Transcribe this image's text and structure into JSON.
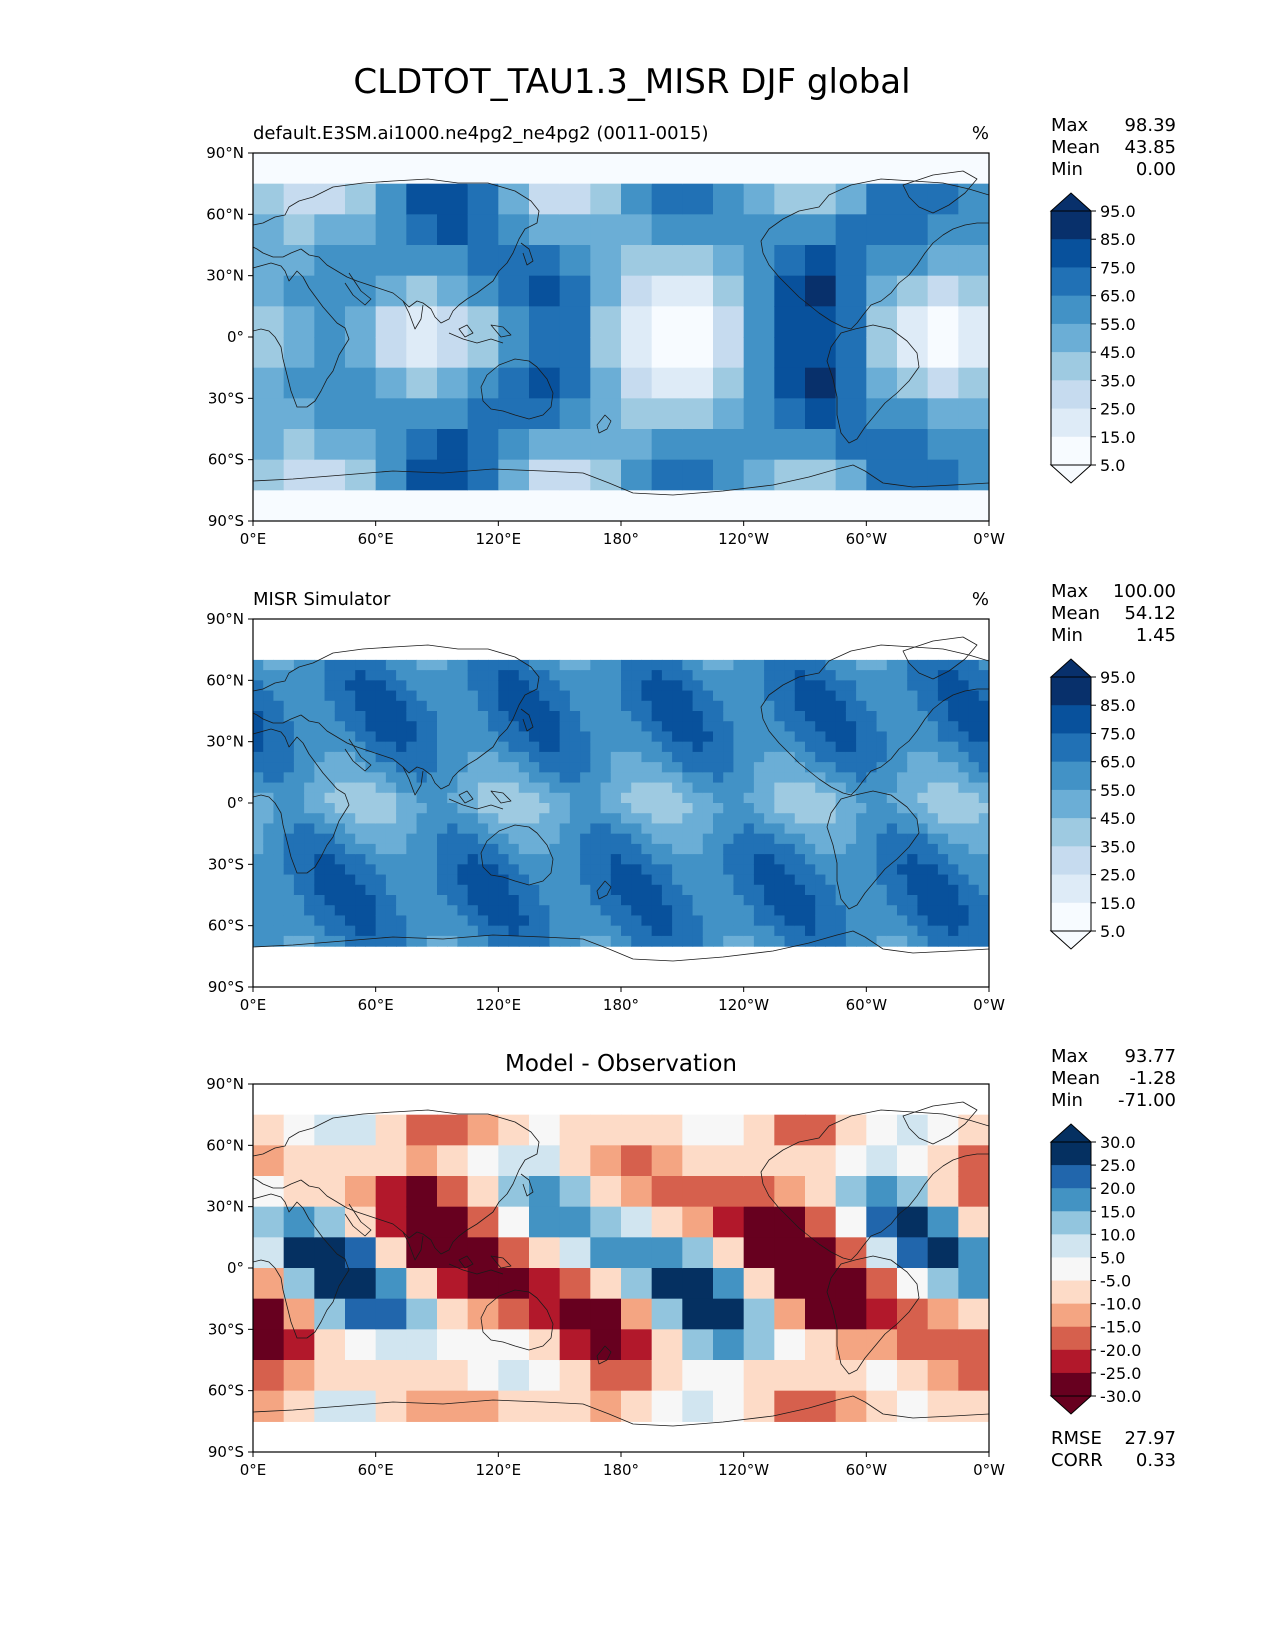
{
  "figure": {
    "title": "CLDTOT_TAU1.3_MISR DJF global"
  },
  "axes": {
    "lat_ticks": [
      "90°N",
      "60°N",
      "30°N",
      "0°",
      "30°S",
      "60°S",
      "90°S"
    ],
    "lon_ticks": [
      "0°E",
      "60°E",
      "120°E",
      "180°",
      "120°W",
      "60°W",
      "0°W"
    ]
  },
  "panels": [
    {
      "id": "model",
      "left_title": "default.E3SM.ai1000.ne4pg2_ne4pg2 (0011-0015)",
      "center_title": "",
      "units": "%",
      "stats": [
        {
          "label": "Max",
          "value": "98.39"
        },
        {
          "label": "Mean",
          "value": "43.85"
        },
        {
          "label": "Min",
          "value": "0.00"
        }
      ],
      "colorbar_labels": [
        "95.0",
        "85.0",
        "75.0",
        "65.0",
        "55.0",
        "45.0",
        "35.0",
        "25.0",
        "15.0",
        "5.0"
      ],
      "colorbar_colors": [
        "#08306b",
        "#08519c",
        "#2171b5",
        "#4292c6",
        "#6baed6",
        "#9ecae1",
        "#c6dbef",
        "#deebf7",
        "#f7fbff"
      ],
      "extra_stats": []
    },
    {
      "id": "obs",
      "left_title": "MISR Simulator",
      "center_title": "",
      "units": "%",
      "stats": [
        {
          "label": "Max",
          "value": "100.00"
        },
        {
          "label": "Mean",
          "value": "54.12"
        },
        {
          "label": "Min",
          "value": "1.45"
        }
      ],
      "colorbar_labels": [
        "95.0",
        "85.0",
        "75.0",
        "65.0",
        "55.0",
        "45.0",
        "35.0",
        "25.0",
        "15.0",
        "5.0"
      ],
      "colorbar_colors": [
        "#08306b",
        "#08519c",
        "#2171b5",
        "#4292c6",
        "#6baed6",
        "#9ecae1",
        "#c6dbef",
        "#deebf7",
        "#f7fbff"
      ],
      "extra_stats": []
    },
    {
      "id": "diff",
      "left_title": "",
      "center_title": "Model - Observation",
      "units": "",
      "stats": [
        {
          "label": "Max",
          "value": "93.77"
        },
        {
          "label": "Mean",
          "value": "-1.28"
        },
        {
          "label": "Min",
          "value": "-71.00"
        }
      ],
      "colorbar_labels": [
        "30.0",
        "25.0",
        "20.0",
        "15.0",
        "10.0",
        "5.0",
        "-5.0",
        "-10.0",
        "-15.0",
        "-20.0",
        "-25.0",
        "-30.0"
      ],
      "colorbar_colors": [
        "#053061",
        "#2166ac",
        "#4393c3",
        "#92c5de",
        "#d1e5f0",
        "#f7f7f7",
        "#fddbc7",
        "#f4a582",
        "#d6604d",
        "#b2182b",
        "#67001f"
      ],
      "extra_stats": [
        {
          "label": "RMSE",
          "value": "27.97"
        },
        {
          "label": "CORR",
          "value": "0.33"
        }
      ]
    }
  ]
}
